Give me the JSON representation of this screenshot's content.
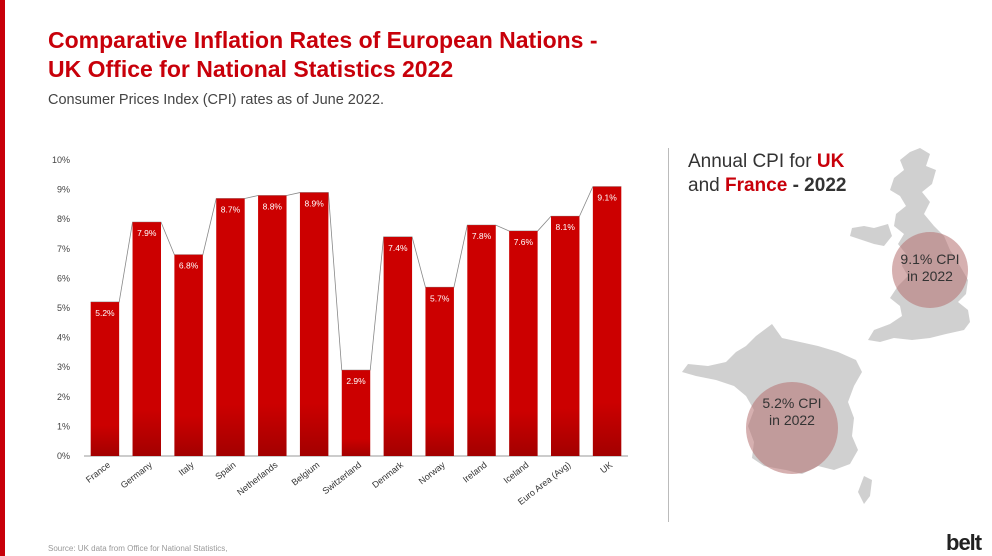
{
  "header": {
    "title_line1": "Comparative Inflation Rates of European Nations -",
    "title_line2": "UK Office for National Statistics 2022",
    "subtitle": "Consumer Prices Index (CPI) rates as of June 2022."
  },
  "chart_data": {
    "type": "bar",
    "categories": [
      "France",
      "Germany",
      "Italy",
      "Spain",
      "Netherlands",
      "Belgium",
      "Switzerland",
      "Denmark",
      "Norway",
      "Ireland",
      "Iceland",
      "Euro Area (Avg)",
      "UK"
    ],
    "values": [
      5.2,
      7.9,
      6.8,
      8.7,
      8.8,
      8.9,
      2.9,
      7.4,
      5.7,
      7.8,
      7.6,
      8.1,
      9.1
    ],
    "data_labels": [
      "5.2%",
      "7.9%",
      "6.8%",
      "8.7%",
      "8.8%",
      "8.9%",
      "2.9%",
      "7.4%",
      "5.7%",
      "7.8%",
      "7.6%",
      "8.1%",
      "9.1%"
    ],
    "y_ticks": [
      "0%",
      "1%",
      "2%",
      "3%",
      "4%",
      "5%",
      "6%",
      "7%",
      "8%",
      "9%",
      "10%"
    ],
    "ylim": [
      0,
      10
    ],
    "grid": false,
    "connector_line": true,
    "bar_color": "#cc0000"
  },
  "panel": {
    "title_part1": "Annual CPI for ",
    "title_uk": "UK",
    "title_and": "and ",
    "title_france": "France",
    "title_year": " - 2022",
    "uk_line1": "9.1% CPI",
    "uk_line2": "in 2022",
    "fr_line1": "5.2% CPI",
    "fr_line2": "in 2022"
  },
  "footer": {
    "source": "Source: UK data from Office for National Statistics,",
    "logo": "belt"
  },
  "colors": {
    "accent": "#c8000a",
    "map_gray": "#d0d0d0",
    "bubble": "#b47070"
  }
}
